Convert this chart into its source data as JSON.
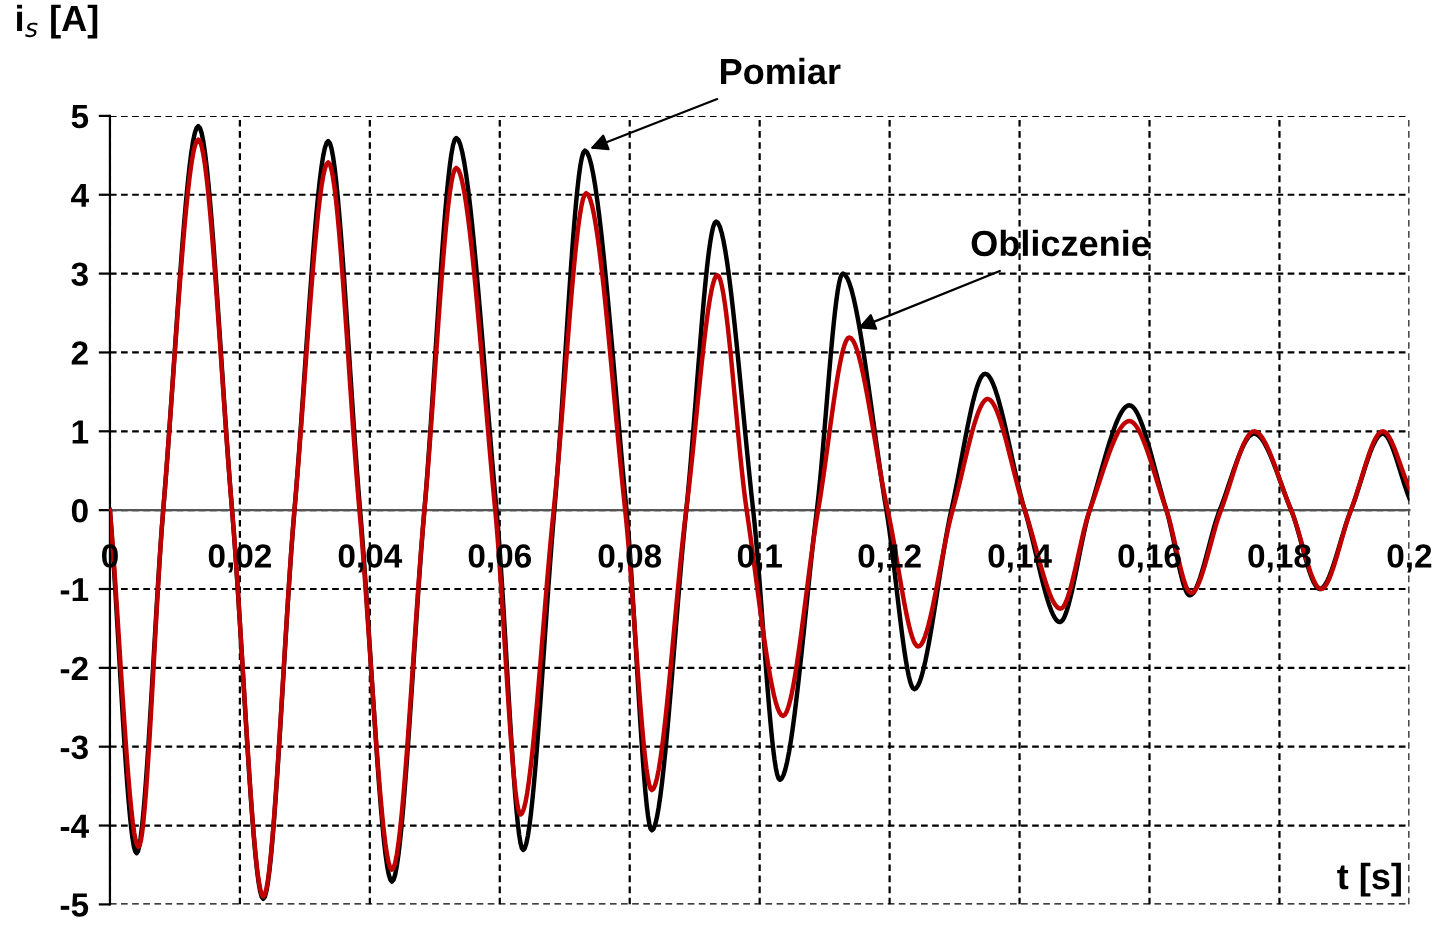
{
  "chart_data": {
    "type": "line",
    "xlabel": "t [s]",
    "ylabel": "i$_{s}$ [A]",
    "xlim": [
      0,
      0.2
    ],
    "ylim": [
      -5,
      5
    ],
    "xticks": [
      0,
      {
        "value": 0.02,
        "label": "0,02"
      },
      {
        "value": 0.04,
        "label": "0,04"
      },
      {
        "value": 0.06,
        "label": "0,06"
      },
      {
        "value": 0.08,
        "label": "0,08"
      },
      {
        "value": 0.1,
        "label": "0,1"
      },
      {
        "value": 0.12,
        "label": "0,12"
      },
      {
        "value": 0.14,
        "label": "0,14"
      },
      {
        "value": 0.16,
        "label": "0,16"
      },
      {
        "value": 0.18,
        "label": "0,18"
      },
      {
        "value": 0.2,
        "label": "0,2"
      }
    ],
    "yticks": [
      -5,
      -4,
      -3,
      -2,
      -1,
      0,
      1,
      2,
      3,
      4,
      5
    ],
    "grid": true,
    "legend": false,
    "marker": "none",
    "line_style": "solid",
    "series": [
      {
        "color": "#000000",
        "x": [
          0,
          0.0041,
          0.0082,
          0.0136,
          0.0188,
          0.0236,
          0.0284,
          0.0336,
          0.0385,
          0.0434,
          0.0484,
          0.0533,
          0.0595,
          0.0636,
          0.0684,
          0.0731,
          0.0795,
          0.0834,
          0.0887,
          0.0933,
          0.099,
          0.1031,
          0.1088,
          0.1128,
          0.1195,
          0.1238,
          0.1295,
          0.1347,
          0.1408,
          0.1462,
          0.1508,
          0.1569,
          0.1626,
          0.1662,
          0.1708,
          0.1761,
          0.1818,
          0.1862,
          0.191,
          0.1959,
          0.2
        ],
        "values": [
          0,
          -4.35,
          0,
          4.87,
          0,
          -4.93,
          0,
          4.68,
          0,
          -4.71,
          0,
          4.72,
          0,
          -4.31,
          0,
          4.56,
          0,
          -4.06,
          0,
          3.66,
          0,
          -3.42,
          0,
          3.0,
          0,
          -2.27,
          0,
          1.73,
          0,
          -1.42,
          0,
          1.33,
          0,
          -1.08,
          0,
          0.97,
          0,
          -1.0,
          0,
          0.97,
          0.15
        ]
      },
      {
        "color": "#c00000",
        "x": [
          0,
          0.0044,
          0.0082,
          0.0136,
          0.0188,
          0.0236,
          0.0284,
          0.0336,
          0.0384,
          0.0434,
          0.0484,
          0.0533,
          0.0593,
          0.0632,
          0.0683,
          0.0733,
          0.0793,
          0.0834,
          0.0887,
          0.0935,
          0.098,
          0.1036,
          0.109,
          0.1138,
          0.1197,
          0.1244,
          0.1297,
          0.1351,
          0.1408,
          0.1463,
          0.1508,
          0.1569,
          0.1626,
          0.1664,
          0.171,
          0.1761,
          0.1818,
          0.1864,
          0.191,
          0.1959,
          0.2
        ],
        "values": [
          0,
          -4.27,
          0,
          4.7,
          0,
          -4.9,
          0,
          4.41,
          0,
          -4.56,
          0,
          4.34,
          0,
          -3.86,
          0,
          4.02,
          0,
          -3.55,
          0,
          2.98,
          0,
          -2.61,
          0,
          2.19,
          0,
          -1.73,
          0,
          1.41,
          0,
          -1.25,
          0,
          1.13,
          0,
          -1.05,
          0,
          1.0,
          0,
          -1.0,
          0,
          1.0,
          0.28
        ]
      }
    ],
    "annotations": [
      {
        "text": "Pomiar",
        "x": 0.0731,
        "y": 4.56
      },
      {
        "text": "Obliczenie",
        "x": 0.1143,
        "y": 2.28
      }
    ]
  }
}
